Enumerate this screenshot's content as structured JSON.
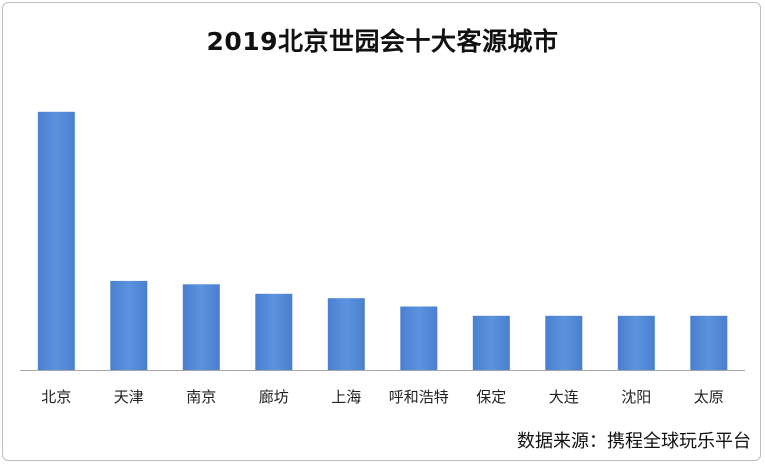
{
  "chart_data": {
    "type": "bar",
    "title": "2019北京世园会十大客源城市",
    "categories": [
      "北京",
      "天津",
      "南京",
      "廊坊",
      "上海",
      "呼和浩特",
      "保定",
      "大连",
      "沈阳",
      "太原"
    ],
    "values": [
      100,
      34.5,
      33.2,
      29.5,
      27.8,
      24.6,
      21,
      21,
      21,
      21
    ],
    "ylim": [
      0,
      110
    ],
    "grid": false,
    "legend": "none",
    "bar_color": "#4a7fcf",
    "bar_color_light": "#5b93df",
    "axis_color": "#a6a6a6"
  },
  "source_note": "数据来源：携程全球玩乐平台"
}
